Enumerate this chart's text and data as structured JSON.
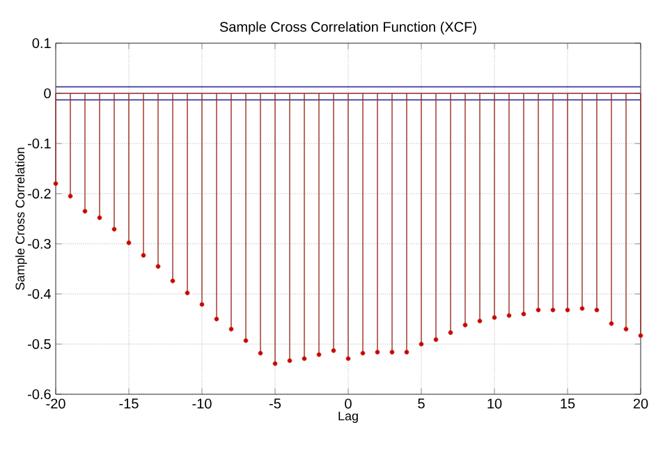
{
  "chart_data": {
    "type": "lollipop",
    "title": "Sample Cross Correlation Function (XCF)",
    "xlabel": "Lag",
    "ylabel": "Sample Cross Correlation",
    "x": [
      -20,
      -19,
      -18,
      -17,
      -16,
      -15,
      -14,
      -13,
      -12,
      -11,
      -10,
      -9,
      -8,
      -7,
      -6,
      -5,
      -4,
      -3,
      -2,
      -1,
      0,
      1,
      2,
      3,
      4,
      5,
      6,
      7,
      8,
      9,
      10,
      11,
      12,
      13,
      14,
      15,
      16,
      17,
      18,
      19,
      20
    ],
    "values": [
      -0.18,
      -0.205,
      -0.235,
      -0.248,
      -0.271,
      -0.298,
      -0.323,
      -0.345,
      -0.374,
      -0.398,
      -0.421,
      -0.45,
      -0.47,
      -0.493,
      -0.518,
      -0.539,
      -0.533,
      -0.529,
      -0.521,
      -0.513,
      -0.529,
      -0.518,
      -0.516,
      -0.516,
      -0.516,
      -0.5,
      -0.491,
      -0.477,
      -0.462,
      -0.454,
      -0.447,
      -0.443,
      -0.44,
      -0.432,
      -0.432,
      -0.432,
      -0.429,
      -0.432,
      -0.459,
      -0.47,
      -0.483
    ],
    "color": "#c0392b",
    "marker": "circle",
    "grid": true,
    "xlim": [
      -20,
      20
    ],
    "xticks": [
      -20,
      -15,
      -10,
      -5,
      0,
      5,
      10,
      15,
      20
    ],
    "ylim": [
      -0.6,
      0.1
    ],
    "yticks": [
      -0.6,
      -0.5,
      -0.4,
      -0.3,
      -0.2,
      -0.1,
      0,
      0.1
    ],
    "ref_lines": [
      {
        "axis": "y",
        "value": 0.013,
        "color": "#3a3a9a"
      },
      {
        "axis": "y",
        "value": 0,
        "color": "#8b2a3a"
      },
      {
        "axis": "y",
        "value": -0.013,
        "color": "#3a3a9a"
      }
    ]
  }
}
